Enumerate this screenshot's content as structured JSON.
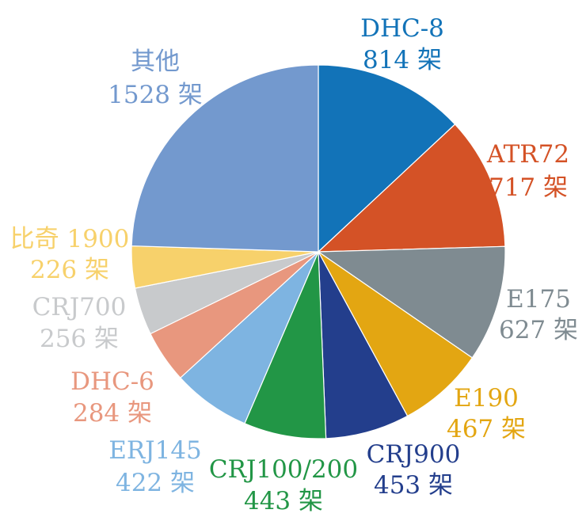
{
  "chart_data": {
    "type": "pie",
    "unit": "架",
    "slices": [
      {
        "label": "DHC-8",
        "value": 814,
        "value_text": "814 架",
        "color": "#1273B8"
      },
      {
        "label": "ATR72",
        "value": 717,
        "value_text": "717 架",
        "color": "#D45226"
      },
      {
        "label": "E175",
        "value": 627,
        "value_text": "627 架",
        "color": "#7F8B91"
      },
      {
        "label": "E190",
        "value": 467,
        "value_text": "467 架",
        "color": "#E3A612"
      },
      {
        "label": "CRJ900",
        "value": 453,
        "value_text": "453 架",
        "color": "#233E8C"
      },
      {
        "label": "CRJ100/200",
        "value": 443,
        "value_text": "443 架",
        "color": "#229646"
      },
      {
        "label": "ERJ145",
        "value": 422,
        "value_text": "422 架",
        "color": "#7EB4E1"
      },
      {
        "label": "DHC-6",
        "value": 284,
        "value_text": "284 架",
        "color": "#E8977E"
      },
      {
        "label": "CRJ700",
        "value": 256,
        "value_text": "256 架",
        "color": "#C8CACC"
      },
      {
        "label": "比奇 1900",
        "value": 226,
        "value_text": "226 架",
        "color": "#F7D16B"
      },
      {
        "label": "其他",
        "value": 1528,
        "value_text": "1528 架",
        "color": "#7399CE"
      }
    ]
  }
}
